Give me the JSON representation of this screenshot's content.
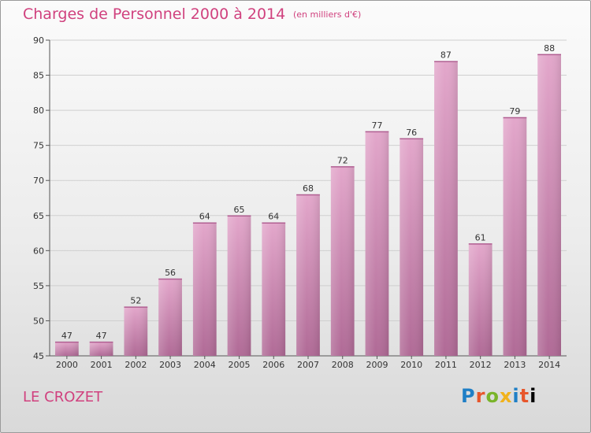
{
  "header": {
    "title": "Charges de Personnel 2000 à 2014",
    "subtitle": "(en milliers d'€)"
  },
  "footer": {
    "place": "LE CROZET",
    "logo": "Proxiti"
  },
  "colors": {
    "bar_top": "#e3a7cb",
    "bar_bottom": "#b06a96",
    "title": "#d0417e",
    "grid": "#cfcfcf"
  },
  "chart_data": {
    "type": "bar",
    "title": "Charges de Personnel 2000 à 2014",
    "subtitle": "(en milliers d'€)",
    "xlabel": "",
    "ylabel": "",
    "categories": [
      "2000",
      "2001",
      "2002",
      "2003",
      "2004",
      "2005",
      "2006",
      "2007",
      "2008",
      "2009",
      "2010",
      "2011",
      "2012",
      "2013",
      "2014"
    ],
    "values": [
      47,
      47,
      52,
      56,
      64,
      65,
      64,
      68,
      72,
      77,
      76,
      87,
      61,
      79,
      88
    ],
    "ylim": [
      45,
      90
    ],
    "yticks": [
      45,
      50,
      55,
      60,
      65,
      70,
      75,
      80,
      85,
      90
    ],
    "grid": true,
    "legend": "none"
  }
}
